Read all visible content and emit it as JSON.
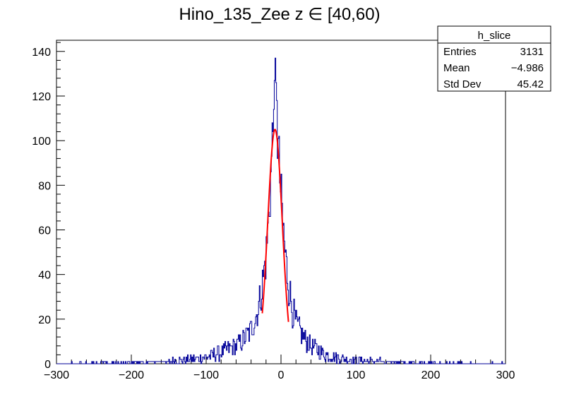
{
  "chart_data": {
    "type": "histogram",
    "title": "Hino_135_Zee z  ∈ [40,60)",
    "xlabel": "",
    "ylabel": "",
    "xlim": [
      -300,
      300
    ],
    "ylim": [
      0,
      145
    ],
    "x_ticks": [
      "−300",
      "−200",
      "−100",
      "0",
      "100",
      "200",
      "300"
    ],
    "x_tick_values": [
      -300,
      -200,
      -100,
      0,
      100,
      200,
      300
    ],
    "y_ticks": [
      "0",
      "20",
      "40",
      "60",
      "80",
      "100",
      "120",
      "140"
    ],
    "y_tick_values": [
      0,
      20,
      40,
      60,
      80,
      100,
      120,
      140
    ],
    "histogram_color": "#000099",
    "fit_color": "#ff0000",
    "histogram_envelope": [
      {
        "x": -300,
        "y": 0
      },
      {
        "x": -150,
        "y": 1
      },
      {
        "x": -120,
        "y": 2
      },
      {
        "x": -100,
        "y": 3
      },
      {
        "x": -80,
        "y": 5
      },
      {
        "x": -60,
        "y": 8
      },
      {
        "x": -50,
        "y": 11
      },
      {
        "x": -40,
        "y": 15
      },
      {
        "x": -30,
        "y": 25
      },
      {
        "x": -25,
        "y": 35
      },
      {
        "x": -20,
        "y": 48
      },
      {
        "x": -17,
        "y": 62
      },
      {
        "x": -14,
        "y": 80
      },
      {
        "x": -12,
        "y": 95
      },
      {
        "x": -10,
        "y": 110
      },
      {
        "x": -9,
        "y": 118
      },
      {
        "x": -8,
        "y": 122
      },
      {
        "x": -7,
        "y": 118
      },
      {
        "x": -5,
        "y": 105
      },
      {
        "x": -3,
        "y": 92
      },
      {
        "x": 0,
        "y": 75
      },
      {
        "x": 3,
        "y": 60
      },
      {
        "x": 6,
        "y": 48
      },
      {
        "x": 10,
        "y": 36
      },
      {
        "x": 15,
        "y": 25
      },
      {
        "x": 20,
        "y": 18
      },
      {
        "x": 30,
        "y": 12
      },
      {
        "x": 40,
        "y": 8
      },
      {
        "x": 60,
        "y": 4
      },
      {
        "x": 80,
        "y": 2.5
      },
      {
        "x": 100,
        "y": 1.5
      },
      {
        "x": 150,
        "y": 0.8
      },
      {
        "x": 200,
        "y": 0.3
      },
      {
        "x": 300,
        "y": 0
      }
    ],
    "peak_bins": [
      {
        "x": -8,
        "y": 137
      },
      {
        "x": -9,
        "y": 127
      },
      {
        "x": -7,
        "y": 126
      },
      {
        "x": -6,
        "y": 118
      },
      {
        "x": -10,
        "y": 114
      }
    ],
    "fit": {
      "type": "gaussian",
      "mean": -8,
      "sigma": 9.7,
      "amplitude": 105,
      "range": [
        -25,
        10
      ]
    },
    "stats_box": {
      "name": "h_slice",
      "rows": [
        {
          "label": "Entries",
          "value": "3131"
        },
        {
          "label": "Mean",
          "value": "−4.986"
        },
        {
          "label": "Std Dev",
          "value": "45.42"
        }
      ]
    }
  }
}
